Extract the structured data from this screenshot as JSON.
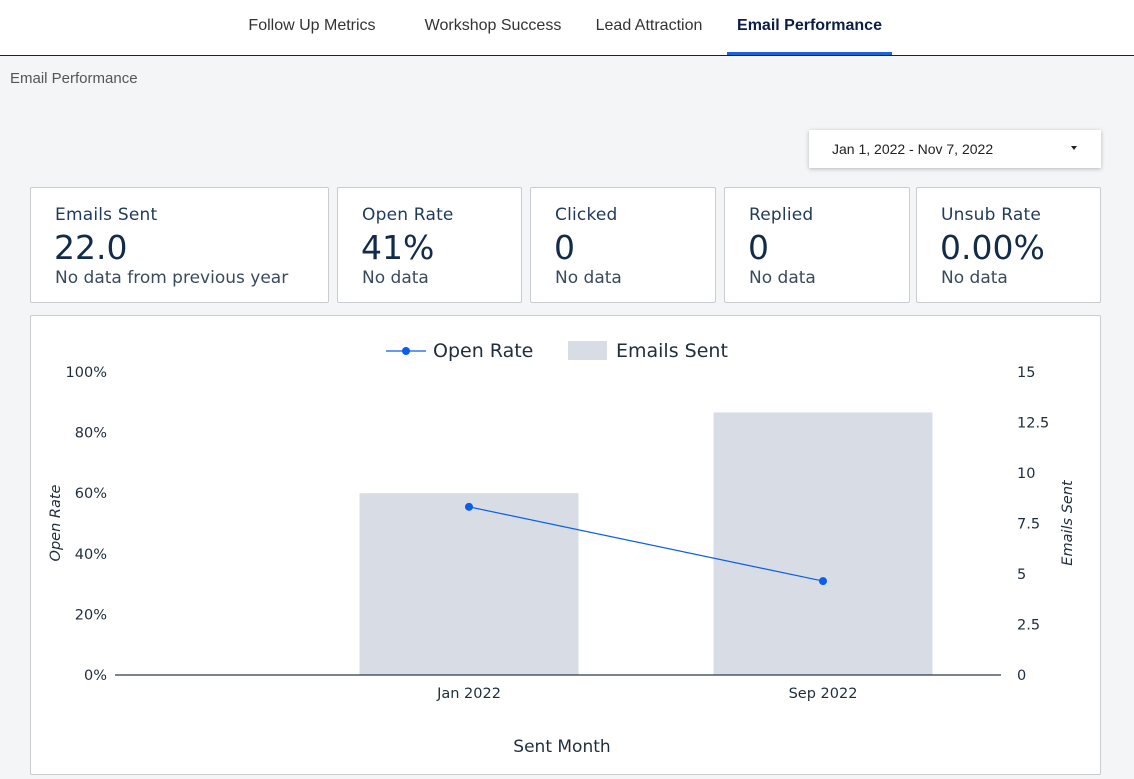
{
  "tabs": [
    {
      "label": "Follow Up Metrics",
      "active": false
    },
    {
      "label": "Workshop Success",
      "active": false
    },
    {
      "label": "Lead Attraction",
      "active": false
    },
    {
      "label": "Email Performance",
      "active": true
    }
  ],
  "page_title": "Email Performance",
  "date_range": {
    "value": "Jan 1, 2022 - Nov 7, 2022",
    "icon": "caret-down-icon"
  },
  "scorecards": [
    {
      "label": "Emails Sent",
      "value": "22.0",
      "sub": "No data from previous year"
    },
    {
      "label": "Open Rate",
      "value": "41%",
      "sub": "No data"
    },
    {
      "label": "Clicked",
      "value": "0",
      "sub": "No data"
    },
    {
      "label": "Replied",
      "value": "0",
      "sub": "No data"
    },
    {
      "label": "Unsub Rate",
      "value": "0.00%",
      "sub": "No data"
    }
  ],
  "colors": {
    "accent": "#1e63d6",
    "bar": "#d7dce5",
    "line": "#0b5ee6"
  },
  "chart_data": {
    "type": "bar",
    "categories": [
      "Jan 2022",
      "Sep 2022"
    ],
    "series": [
      {
        "name": "Emails Sent",
        "type": "bar",
        "axis": "right",
        "values": [
          9,
          13
        ]
      },
      {
        "name": "Open Rate",
        "type": "line",
        "axis": "left",
        "values": [
          55.5,
          31
        ]
      }
    ],
    "xlabel": "Sent Month",
    "ylabel_left": "Open Rate",
    "ylabel_right": "Emails Sent",
    "ylim_left": [
      0,
      100
    ],
    "ylim_right": [
      0,
      15
    ],
    "left_ticks": [
      "0%",
      "20%",
      "40%",
      "60%",
      "80%",
      "100%"
    ],
    "right_ticks": [
      "0",
      "2.5",
      "5",
      "7.5",
      "10",
      "12.5",
      "15"
    ],
    "legend_placement": "top-center",
    "grid": false
  }
}
